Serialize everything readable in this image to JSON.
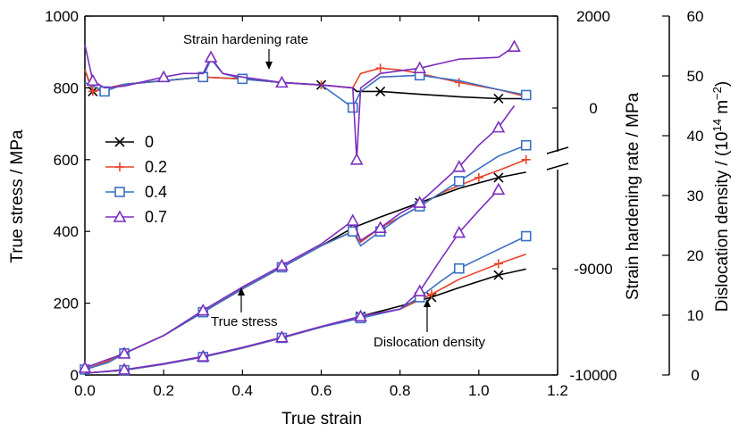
{
  "chart_data": {
    "type": "line",
    "xlabel": "True strain",
    "ylabel_left": "True stress / MPa",
    "ylabel_right1": "Strain hardening rate / MPa",
    "ylabel_right2_parts": [
      "Dislocation density / (10",
      "14",
      " m",
      "−2",
      ")"
    ],
    "xlim": [
      0,
      1.2
    ],
    "ylim_left": [
      0,
      1000
    ],
    "ylim_right2": [
      0,
      60
    ],
    "xticks": [
      "0.0",
      "0.2",
      "0.4",
      "0.6",
      "0.8",
      "1.0",
      "1.2"
    ],
    "yticks_left": [
      "0",
      "200",
      "400",
      "600",
      "800",
      "1000"
    ],
    "yticks_right1": [
      "2000",
      "0",
      "-9000",
      "-10000"
    ],
    "yticks_right2": [
      "0",
      "10",
      "20",
      "30",
      "40",
      "50",
      "60"
    ],
    "annotations": {
      "strain_hardening": "Strain hardening rate",
      "true_stress": "True stress",
      "dislocation": "Dislocation density"
    },
    "legend": [
      "0",
      "0.2",
      "0.4",
      "0.7"
    ],
    "colors": [
      "#000000",
      "#e8442a",
      "#3a6fc4",
      "#7b2fbe"
    ],
    "markers": [
      "x",
      "plus",
      "square",
      "triangle"
    ],
    "series": [
      {
        "name": "0",
        "stress": [
          [
            0.0,
            15
          ],
          [
            0.05,
            35
          ],
          [
            0.1,
            60
          ],
          [
            0.2,
            110
          ],
          [
            0.3,
            175
          ],
          [
            0.4,
            240
          ],
          [
            0.5,
            300
          ],
          [
            0.6,
            360
          ],
          [
            0.68,
            410
          ],
          [
            0.75,
            440
          ],
          [
            0.85,
            480
          ],
          [
            0.95,
            520
          ],
          [
            1.05,
            550
          ],
          [
            1.12,
            565
          ]
        ],
        "hardening": [
          [
            0.0,
            850
          ],
          [
            0.02,
            790
          ],
          [
            0.1,
            810
          ],
          [
            0.2,
            820
          ],
          [
            0.3,
            830
          ],
          [
            0.4,
            825
          ],
          [
            0.5,
            815
          ],
          [
            0.6,
            808
          ],
          [
            0.68,
            800
          ],
          [
            0.69,
            790
          ],
          [
            0.75,
            790
          ],
          [
            0.85,
            782
          ],
          [
            0.95,
            775
          ],
          [
            1.05,
            770
          ],
          [
            1.12,
            770
          ]
        ],
        "dislocation": [
          [
            0.0,
            0.3
          ],
          [
            0.1,
            0.8
          ],
          [
            0.2,
            1.8
          ],
          [
            0.3,
            3.0
          ],
          [
            0.4,
            4.5
          ],
          [
            0.5,
            6.2
          ],
          [
            0.6,
            8.0
          ],
          [
            0.7,
            9.8
          ],
          [
            0.8,
            11.5
          ],
          [
            0.88,
            13.0
          ],
          [
            0.95,
            14.6
          ],
          [
            1.05,
            16.7
          ],
          [
            1.12,
            17.7
          ]
        ]
      },
      {
        "name": "0.2",
        "stress": [
          [
            0.0,
            15
          ],
          [
            0.05,
            35
          ],
          [
            0.1,
            60
          ],
          [
            0.2,
            110
          ],
          [
            0.3,
            175
          ],
          [
            0.4,
            240
          ],
          [
            0.5,
            300
          ],
          [
            0.6,
            360
          ],
          [
            0.68,
            400
          ],
          [
            0.7,
            370
          ],
          [
            0.75,
            410
          ],
          [
            0.8,
            440
          ],
          [
            0.85,
            470
          ],
          [
            0.9,
            505
          ],
          [
            1.0,
            550
          ],
          [
            1.05,
            570
          ],
          [
            1.12,
            600
          ]
        ],
        "hardening": [
          [
            0.0,
            850
          ],
          [
            0.02,
            790
          ],
          [
            0.1,
            810
          ],
          [
            0.2,
            820
          ],
          [
            0.3,
            830
          ],
          [
            0.4,
            825
          ],
          [
            0.5,
            815
          ],
          [
            0.6,
            808
          ],
          [
            0.68,
            800
          ],
          [
            0.7,
            840
          ],
          [
            0.75,
            855
          ],
          [
            0.8,
            850
          ],
          [
            0.85,
            840
          ],
          [
            0.95,
            815
          ],
          [
            1.05,
            795
          ],
          [
            1.12,
            775
          ]
        ],
        "dislocation": [
          [
            0.0,
            0.3
          ],
          [
            0.1,
            0.8
          ],
          [
            0.2,
            1.8
          ],
          [
            0.3,
            3.0
          ],
          [
            0.4,
            4.5
          ],
          [
            0.5,
            6.2
          ],
          [
            0.6,
            8.0
          ],
          [
            0.7,
            9.8
          ],
          [
            0.8,
            11.0
          ],
          [
            0.88,
            13.5
          ],
          [
            0.95,
            16.0
          ],
          [
            1.05,
            18.6
          ],
          [
            1.12,
            20.2
          ]
        ]
      },
      {
        "name": "0.4",
        "stress": [
          [
            0.0,
            15
          ],
          [
            0.06,
            35
          ],
          [
            0.1,
            60
          ],
          [
            0.2,
            110
          ],
          [
            0.3,
            175
          ],
          [
            0.4,
            240
          ],
          [
            0.5,
            300
          ],
          [
            0.6,
            360
          ],
          [
            0.68,
            400
          ],
          [
            0.7,
            360
          ],
          [
            0.75,
            400
          ],
          [
            0.8,
            440
          ],
          [
            0.85,
            470
          ],
          [
            0.9,
            505
          ],
          [
            0.95,
            540
          ],
          [
            1.05,
            610
          ],
          [
            1.12,
            640
          ]
        ],
        "hardening": [
          [
            0.0,
            815
          ],
          [
            0.05,
            790
          ],
          [
            0.1,
            810
          ],
          [
            0.2,
            820
          ],
          [
            0.3,
            830
          ],
          [
            0.32,
            880
          ],
          [
            0.35,
            840
          ],
          [
            0.4,
            825
          ],
          [
            0.5,
            815
          ],
          [
            0.6,
            808
          ],
          [
            0.68,
            745
          ],
          [
            0.7,
            790
          ],
          [
            0.75,
            830
          ],
          [
            0.85,
            835
          ],
          [
            0.95,
            820
          ],
          [
            1.05,
            795
          ],
          [
            1.12,
            780
          ]
        ],
        "dislocation": [
          [
            0.0,
            0.3
          ],
          [
            0.1,
            0.8
          ],
          [
            0.2,
            1.8
          ],
          [
            0.3,
            3.0
          ],
          [
            0.4,
            4.5
          ],
          [
            0.5,
            6.2
          ],
          [
            0.6,
            8.0
          ],
          [
            0.7,
            9.5
          ],
          [
            0.8,
            11.0
          ],
          [
            0.85,
            13.0
          ],
          [
            0.9,
            15.5
          ],
          [
            0.95,
            17.8
          ],
          [
            1.05,
            21.0
          ],
          [
            1.12,
            23.2
          ]
        ]
      },
      {
        "name": "0.7",
        "stress": [
          [
            0.0,
            20
          ],
          [
            0.05,
            40
          ],
          [
            0.1,
            60
          ],
          [
            0.2,
            110
          ],
          [
            0.3,
            180
          ],
          [
            0.4,
            245
          ],
          [
            0.5,
            305
          ],
          [
            0.6,
            365
          ],
          [
            0.68,
            430
          ],
          [
            0.7,
            375
          ],
          [
            0.75,
            410
          ],
          [
            0.8,
            450
          ],
          [
            0.85,
            480
          ],
          [
            0.9,
            530
          ],
          [
            0.95,
            580
          ],
          [
            1.0,
            640
          ],
          [
            1.05,
            690
          ],
          [
            1.09,
            750
          ]
        ],
        "hardening": [
          [
            0.0,
            920
          ],
          [
            0.02,
            820
          ],
          [
            0.05,
            800
          ],
          [
            0.1,
            805
          ],
          [
            0.2,
            830
          ],
          [
            0.25,
            840
          ],
          [
            0.3,
            840
          ],
          [
            0.32,
            885
          ],
          [
            0.35,
            840
          ],
          [
            0.4,
            830
          ],
          [
            0.5,
            815
          ],
          [
            0.6,
            808
          ],
          [
            0.68,
            800
          ],
          [
            0.69,
            600
          ],
          [
            0.7,
            800
          ],
          [
            0.75,
            840
          ],
          [
            0.85,
            855
          ],
          [
            0.95,
            880
          ],
          [
            1.05,
            885
          ],
          [
            1.09,
            915
          ]
        ],
        "dislocation": [
          [
            0.0,
            0.3
          ],
          [
            0.1,
            0.9
          ],
          [
            0.2,
            1.9
          ],
          [
            0.3,
            3.1
          ],
          [
            0.4,
            4.6
          ],
          [
            0.5,
            6.3
          ],
          [
            0.6,
            8.1
          ],
          [
            0.7,
            9.8
          ],
          [
            0.8,
            11.0
          ],
          [
            0.85,
            14.0
          ],
          [
            0.9,
            19.0
          ],
          [
            0.95,
            23.8
          ],
          [
            1.0,
            27.5
          ],
          [
            1.05,
            31.0
          ]
        ]
      }
    ]
  }
}
